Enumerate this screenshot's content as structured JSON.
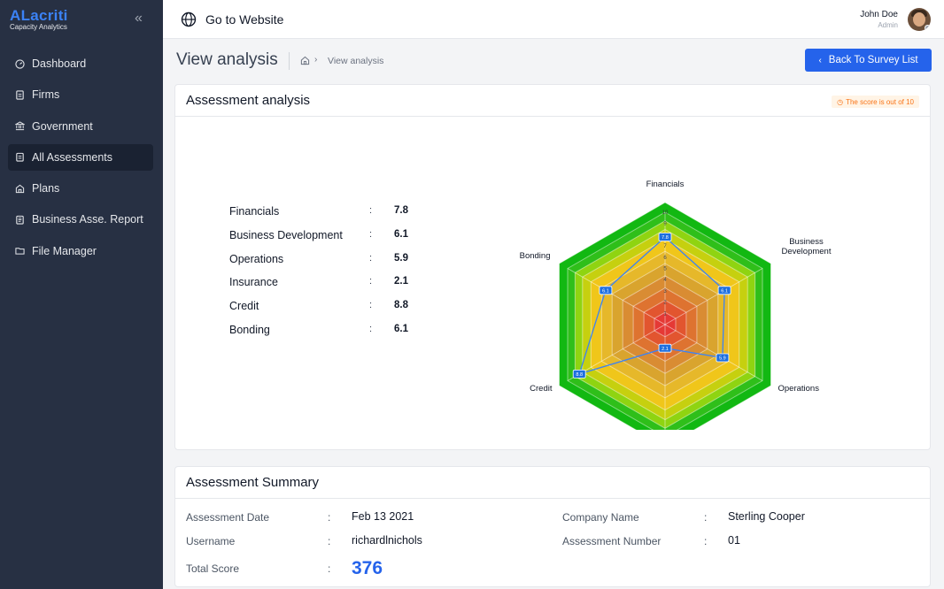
{
  "brand": {
    "name": "ALacriti",
    "subtitle": "Capacity Analytics"
  },
  "sidebar": {
    "items": [
      {
        "label": "Dashboard",
        "icon": "gauge-icon",
        "active": false
      },
      {
        "label": "Firms",
        "icon": "document-icon",
        "active": false
      },
      {
        "label": "Government",
        "icon": "bank-icon",
        "active": false
      },
      {
        "label": "All Assessments",
        "icon": "clipboard-icon",
        "active": true
      },
      {
        "label": "Plans",
        "icon": "building-icon",
        "active": false
      },
      {
        "label": "Business Asse. Report",
        "icon": "report-icon",
        "active": false
      },
      {
        "label": "File Manager",
        "icon": "folder-icon",
        "active": false
      }
    ]
  },
  "header": {
    "goto_label": "Go to Website",
    "user_name": "John Doe",
    "user_role": "Admin"
  },
  "page": {
    "title": "View analysis",
    "breadcrumb_current": "View analysis",
    "back_button": "Back To Survey List"
  },
  "analysis": {
    "title": "Assessment analysis",
    "note": "The score is out of 10",
    "scores": [
      {
        "label": "Financials",
        "value": "7.8"
      },
      {
        "label": "Business Development",
        "value": "6.1"
      },
      {
        "label": "Operations",
        "value": "5.9"
      },
      {
        "label": "Insurance",
        "value": "2.1"
      },
      {
        "label": "Credit",
        "value": "8.8"
      },
      {
        "label": "Bonding",
        "value": "6.1"
      }
    ]
  },
  "chart_data": {
    "type": "radar",
    "axes": [
      "Financials",
      "Business Development",
      "Operations",
      "Insurance",
      "Credit",
      "Bonding"
    ],
    "values": [
      7.8,
      6.1,
      5.9,
      2.1,
      8.8,
      6.1
    ],
    "max": 10,
    "ticks": [
      1,
      2,
      3,
      4,
      5,
      6,
      7,
      8,
      9,
      10
    ],
    "band_colors": [
      "#e53935",
      "#e2552f",
      "#de7330",
      "#d98c33",
      "#d9a42e",
      "#e6b82a",
      "#f0c61a",
      "#c6d00f",
      "#8fd411",
      "#2fbf1a",
      "#12b812"
    ],
    "line_color": "#3b82f6"
  },
  "summary": {
    "title": "Assessment Summary",
    "assessment_date_label": "Assessment Date",
    "assessment_date": "Feb 13 2021",
    "username_label": "Username",
    "username": "richardlnichols",
    "total_score_label": "Total Score",
    "total_score": "376",
    "company_name_label": "Company Name",
    "company_name": "Sterling Cooper",
    "assessment_number_label": "Assessment Number",
    "assessment_number": "01"
  }
}
